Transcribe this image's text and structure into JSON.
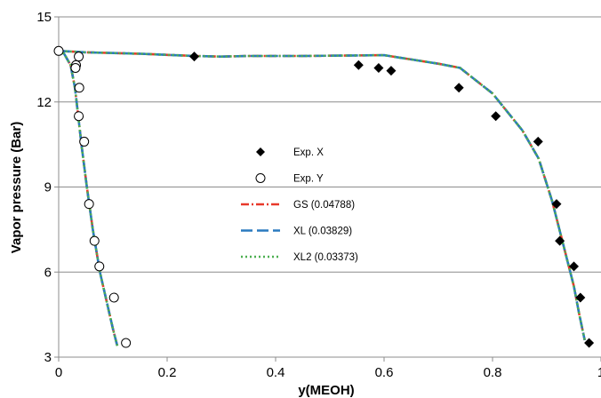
{
  "chart_data": {
    "type": "scatter",
    "xlabel": "y(MEOH)",
    "ylabel": "Vapor pressure (Bar)",
    "xlim": [
      0,
      1
    ],
    "ylim": [
      3,
      15
    ],
    "xticks": [
      0,
      0.2,
      0.4,
      0.6,
      0.8,
      1
    ],
    "xtick_labels": [
      "0",
      "0.2",
      "0.4",
      "0.6",
      "0.8",
      "1"
    ],
    "yticks": [
      3,
      6,
      9,
      12,
      15
    ],
    "ytick_labels": [
      "3",
      "6",
      "9",
      "12",
      "15"
    ],
    "grid": "horizontal",
    "legend_position": "center",
    "series": [
      {
        "name": "Exp. X",
        "kind": "marker",
        "marker": "filled-diamond",
        "color": "#000000",
        "points": [
          [
            0.0,
            13.8
          ],
          [
            0.25,
            13.6
          ],
          [
            0.553,
            13.3
          ],
          [
            0.59,
            13.2
          ],
          [
            0.613,
            13.1
          ],
          [
            0.738,
            12.5
          ],
          [
            0.806,
            11.5
          ],
          [
            0.884,
            10.6
          ],
          [
            0.918,
            8.4
          ],
          [
            0.924,
            7.1
          ],
          [
            0.95,
            6.2
          ],
          [
            0.962,
            5.1
          ],
          [
            0.978,
            3.5
          ]
        ]
      },
      {
        "name": "Exp. Y",
        "kind": "marker",
        "marker": "open-circle",
        "color": "#000000",
        "points": [
          [
            0.0,
            13.8
          ],
          [
            0.037,
            13.6
          ],
          [
            0.032,
            13.3
          ],
          [
            0.031,
            13.2
          ],
          [
            0.038,
            12.5
          ],
          [
            0.037,
            11.5
          ],
          [
            0.047,
            10.6
          ],
          [
            0.056,
            8.4
          ],
          [
            0.066,
            7.1
          ],
          [
            0.075,
            6.2
          ],
          [
            0.102,
            5.1
          ],
          [
            0.124,
            3.5
          ]
        ]
      },
      {
        "name": "GS (0.04788)",
        "kind": "line",
        "style": "dash-dot",
        "color": "#e8392a",
        "points": [
          [
            0.108,
            3.4
          ],
          [
            0.1,
            4.0
          ],
          [
            0.088,
            5.0
          ],
          [
            0.076,
            6.0
          ],
          [
            0.063,
            7.5
          ],
          [
            0.052,
            9.0
          ],
          [
            0.042,
            10.5
          ],
          [
            0.036,
            11.5
          ],
          [
            0.03,
            12.5
          ],
          [
            0.022,
            13.3
          ],
          [
            0.01,
            13.7
          ],
          [
            0.0,
            13.8
          ],
          [
            0.05,
            13.75
          ],
          [
            0.15,
            13.7
          ],
          [
            0.25,
            13.62
          ],
          [
            0.3,
            13.6
          ],
          [
            0.35,
            13.62
          ],
          [
            0.45,
            13.62
          ],
          [
            0.55,
            13.64
          ],
          [
            0.6,
            13.65
          ],
          [
            0.65,
            13.5
          ],
          [
            0.7,
            13.35
          ],
          [
            0.74,
            13.2
          ],
          [
            0.8,
            12.3
          ],
          [
            0.855,
            11.0
          ],
          [
            0.885,
            10.0
          ],
          [
            0.91,
            8.5
          ],
          [
            0.93,
            7.0
          ],
          [
            0.95,
            5.5
          ],
          [
            0.96,
            4.5
          ],
          [
            0.97,
            3.6
          ]
        ]
      },
      {
        "name": "XL (0.03829)",
        "kind": "line",
        "style": "dash",
        "color": "#2a7abf",
        "points": [
          [
            0.108,
            3.4
          ],
          [
            0.1,
            4.0
          ],
          [
            0.088,
            5.0
          ],
          [
            0.076,
            6.0
          ],
          [
            0.063,
            7.5
          ],
          [
            0.052,
            9.0
          ],
          [
            0.042,
            10.5
          ],
          [
            0.036,
            11.5
          ],
          [
            0.03,
            12.5
          ],
          [
            0.022,
            13.3
          ],
          [
            0.01,
            13.7
          ],
          [
            0.0,
            13.8
          ],
          [
            0.05,
            13.75
          ],
          [
            0.15,
            13.7
          ],
          [
            0.25,
            13.62
          ],
          [
            0.3,
            13.6
          ],
          [
            0.35,
            13.62
          ],
          [
            0.45,
            13.62
          ],
          [
            0.55,
            13.64
          ],
          [
            0.6,
            13.65
          ],
          [
            0.65,
            13.5
          ],
          [
            0.7,
            13.35
          ],
          [
            0.74,
            13.2
          ],
          [
            0.8,
            12.3
          ],
          [
            0.855,
            11.0
          ],
          [
            0.885,
            10.0
          ],
          [
            0.91,
            8.5
          ],
          [
            0.93,
            7.0
          ],
          [
            0.95,
            5.5
          ],
          [
            0.96,
            4.5
          ],
          [
            0.97,
            3.6
          ]
        ]
      },
      {
        "name": "XL2 (0.03373)",
        "kind": "line",
        "style": "dot",
        "color": "#4caf50",
        "points": [
          [
            0.108,
            3.4
          ],
          [
            0.1,
            4.0
          ],
          [
            0.088,
            5.0
          ],
          [
            0.076,
            6.0
          ],
          [
            0.063,
            7.5
          ],
          [
            0.052,
            9.0
          ],
          [
            0.042,
            10.5
          ],
          [
            0.036,
            11.5
          ],
          [
            0.03,
            12.5
          ],
          [
            0.022,
            13.3
          ],
          [
            0.01,
            13.7
          ],
          [
            0.0,
            13.8
          ],
          [
            0.05,
            13.75
          ],
          [
            0.15,
            13.7
          ],
          [
            0.25,
            13.62
          ],
          [
            0.3,
            13.6
          ],
          [
            0.35,
            13.62
          ],
          [
            0.45,
            13.62
          ],
          [
            0.55,
            13.64
          ],
          [
            0.6,
            13.65
          ],
          [
            0.65,
            13.5
          ],
          [
            0.7,
            13.35
          ],
          [
            0.74,
            13.2
          ],
          [
            0.8,
            12.3
          ],
          [
            0.855,
            11.0
          ],
          [
            0.885,
            10.0
          ],
          [
            0.91,
            8.5
          ],
          [
            0.93,
            7.0
          ],
          [
            0.95,
            5.5
          ],
          [
            0.96,
            4.5
          ],
          [
            0.97,
            3.6
          ]
        ]
      }
    ]
  }
}
